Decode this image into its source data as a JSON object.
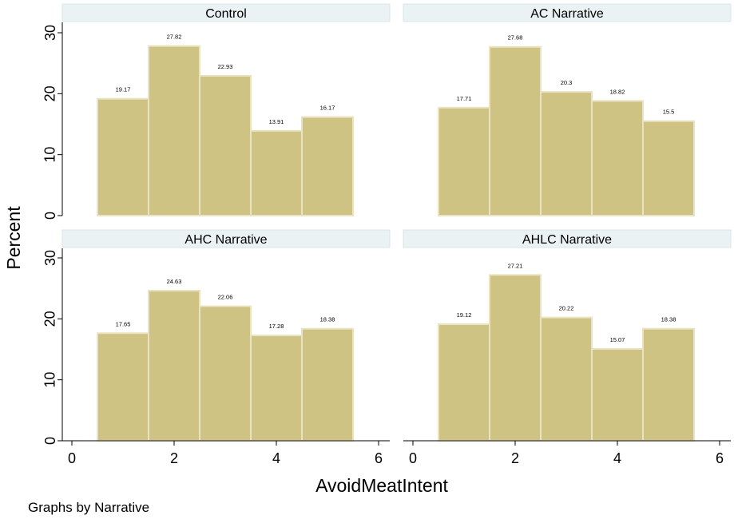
{
  "chart_data": {
    "type": "bar",
    "x_label": "AvoidMeatIntent",
    "y_label": "Percent",
    "note": "Graphs by Narrative",
    "xlim": [
      0,
      6
    ],
    "ylim": [
      0,
      30
    ],
    "x_ticks": [
      0,
      2,
      4,
      6
    ],
    "y_ticks": [
      0,
      10,
      20,
      30
    ],
    "bar_color": "#cfc383",
    "categories": [
      1,
      2,
      3,
      4,
      5
    ],
    "panels": [
      {
        "title": "Control",
        "values": [
          19.17,
          27.82,
          22.93,
          13.91,
          16.17
        ]
      },
      {
        "title": "AC Narrative",
        "values": [
          17.71,
          27.68,
          20.3,
          18.82,
          15.5
        ]
      },
      {
        "title": "AHC Narrative",
        "values": [
          17.65,
          24.63,
          22.06,
          17.28,
          18.38
        ]
      },
      {
        "title": "AHLC Narrative",
        "values": [
          19.12,
          27.21,
          20.22,
          15.07,
          18.38
        ]
      }
    ]
  }
}
